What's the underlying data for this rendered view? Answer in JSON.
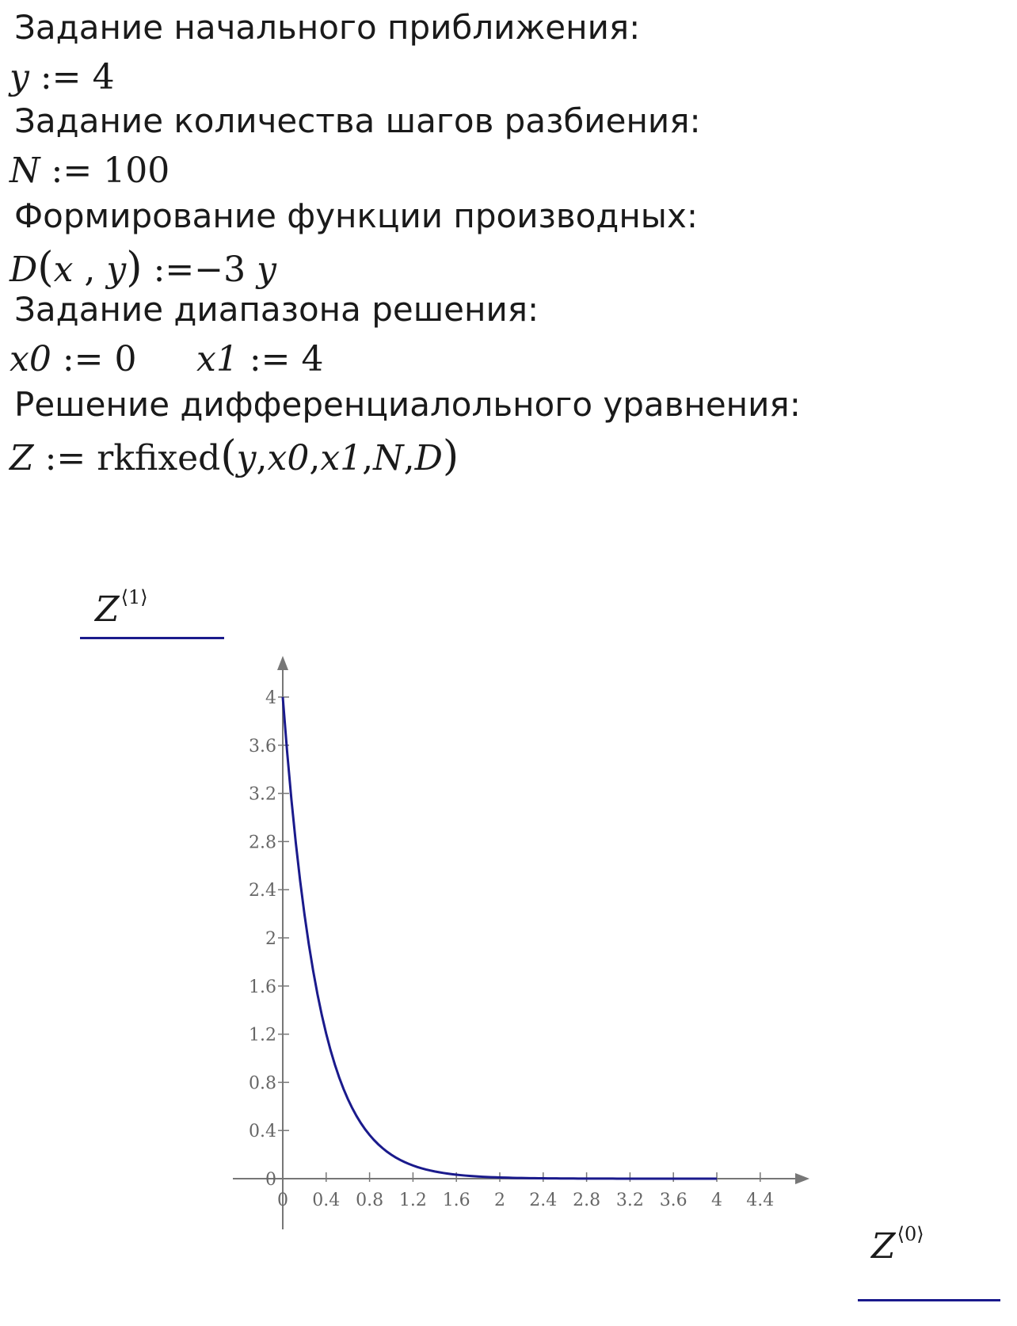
{
  "worksheet": {
    "heading_initial": "Задание начального приближения:",
    "expr_y": {
      "var": "y",
      "assign": ":=",
      "value": "4"
    },
    "heading_steps": "Задание количества шагов разбиения:",
    "expr_N": {
      "var": "N",
      "assign": ":=",
      "value": "100"
    },
    "heading_derivative": "Формирование функции производных:",
    "expr_D": {
      "func": "D",
      "lparen": "(",
      "arg1": "x",
      "comma": ",",
      "arg2": "y",
      "rparen": ")",
      "assign": ":=",
      "minus": "−",
      "coef": "3",
      "var": "y"
    },
    "heading_range": "Задание диапазона решения:",
    "expr_x0": {
      "var": "x0",
      "assign": ":=",
      "value": "0"
    },
    "expr_x1": {
      "var": "x1",
      "assign": ":=",
      "value": "4"
    },
    "heading_solution": "Решение дифференциалольного уравнения:",
    "expr_Z": {
      "var": "Z",
      "assign": ":=",
      "func": "rkfixed",
      "lparen": "(",
      "args": [
        "y",
        "x0",
        "x1",
        "N",
        "D"
      ],
      "comma": ",",
      "rparen": ")"
    }
  },
  "plot": {
    "y_axis_name": {
      "base": "Z",
      "sup": "⟨1⟩"
    },
    "x_axis_name": {
      "base": "Z",
      "sup": "⟨0⟩"
    },
    "colors": {
      "trace": "#1a1a8c",
      "axis": "#777777",
      "underline": "#1a1a8c"
    }
  },
  "chart_data": {
    "type": "line",
    "series": [
      {
        "function": "y = 4·exp(-3x)",
        "x_start": 0,
        "x_end": 4,
        "points": 100
      }
    ],
    "x_ticks": [
      "0",
      "0.4",
      "0.8",
      "1.2",
      "1.6",
      "2",
      "2.4",
      "2.8",
      "3.2",
      "3.6",
      "4",
      "4.4"
    ],
    "y_ticks": [
      "0",
      "0.4",
      "0.8",
      "1.2",
      "1.6",
      "2",
      "2.4",
      "2.8",
      "3.2",
      "3.6",
      "4"
    ],
    "xlim": [
      0,
      4.8
    ],
    "ylim": [
      0,
      4.35
    ],
    "grid": false
  }
}
